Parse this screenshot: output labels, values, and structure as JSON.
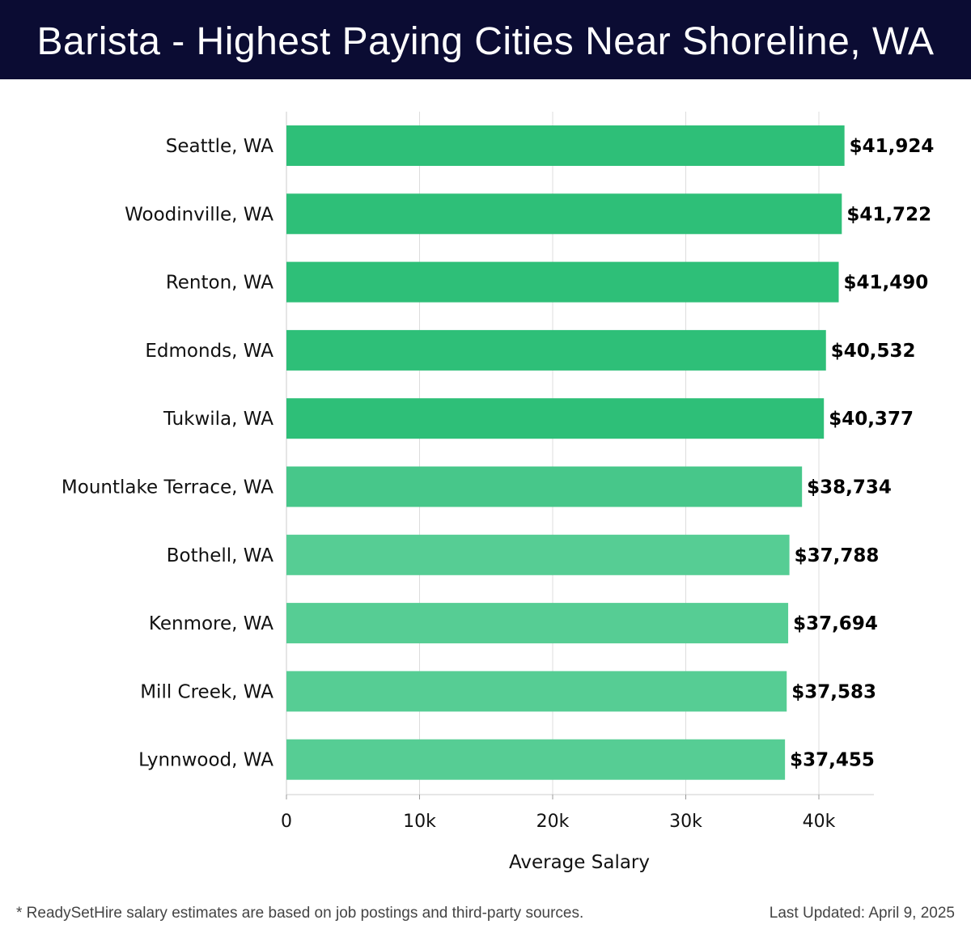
{
  "header": {
    "title": "Barista - Highest Paying Cities Near Shoreline, WA"
  },
  "colors": {
    "header_bg": "#0b0c33",
    "bar_top": "#2ebf78",
    "bar_mid": "#47c78a",
    "bar_low": "#56cd94",
    "grid": "#dddddd"
  },
  "chart_data": {
    "type": "bar",
    "orientation": "horizontal",
    "categories": [
      "Seattle, WA",
      "Woodinville, WA",
      "Renton, WA",
      "Edmonds, WA",
      "Tukwila, WA",
      "Mountlake Terrace, WA",
      "Bothell, WA",
      "Kenmore, WA",
      "Mill Creek, WA",
      "Lynnwood, WA"
    ],
    "values": [
      41924,
      41722,
      41490,
      40532,
      40377,
      38734,
      37788,
      37694,
      37583,
      37455
    ],
    "value_labels": [
      "$41,924",
      "$41,722",
      "$41,490",
      "$40,532",
      "$40,377",
      "$38,734",
      "$37,788",
      "$37,694",
      "$37,583",
      "$37,455"
    ],
    "xlabel": "Average Salary",
    "ylabel": "",
    "xlim": [
      0,
      44000
    ],
    "x_ticks": [
      0,
      10000,
      20000,
      30000,
      40000
    ],
    "x_tick_labels": [
      "0",
      "10k",
      "20k",
      "30k",
      "40k"
    ],
    "grid": true
  },
  "footer": {
    "note": "* ReadySetHire salary estimates are based on job postings and third-party sources.",
    "updated": "Last Updated: April 9, 2025"
  }
}
